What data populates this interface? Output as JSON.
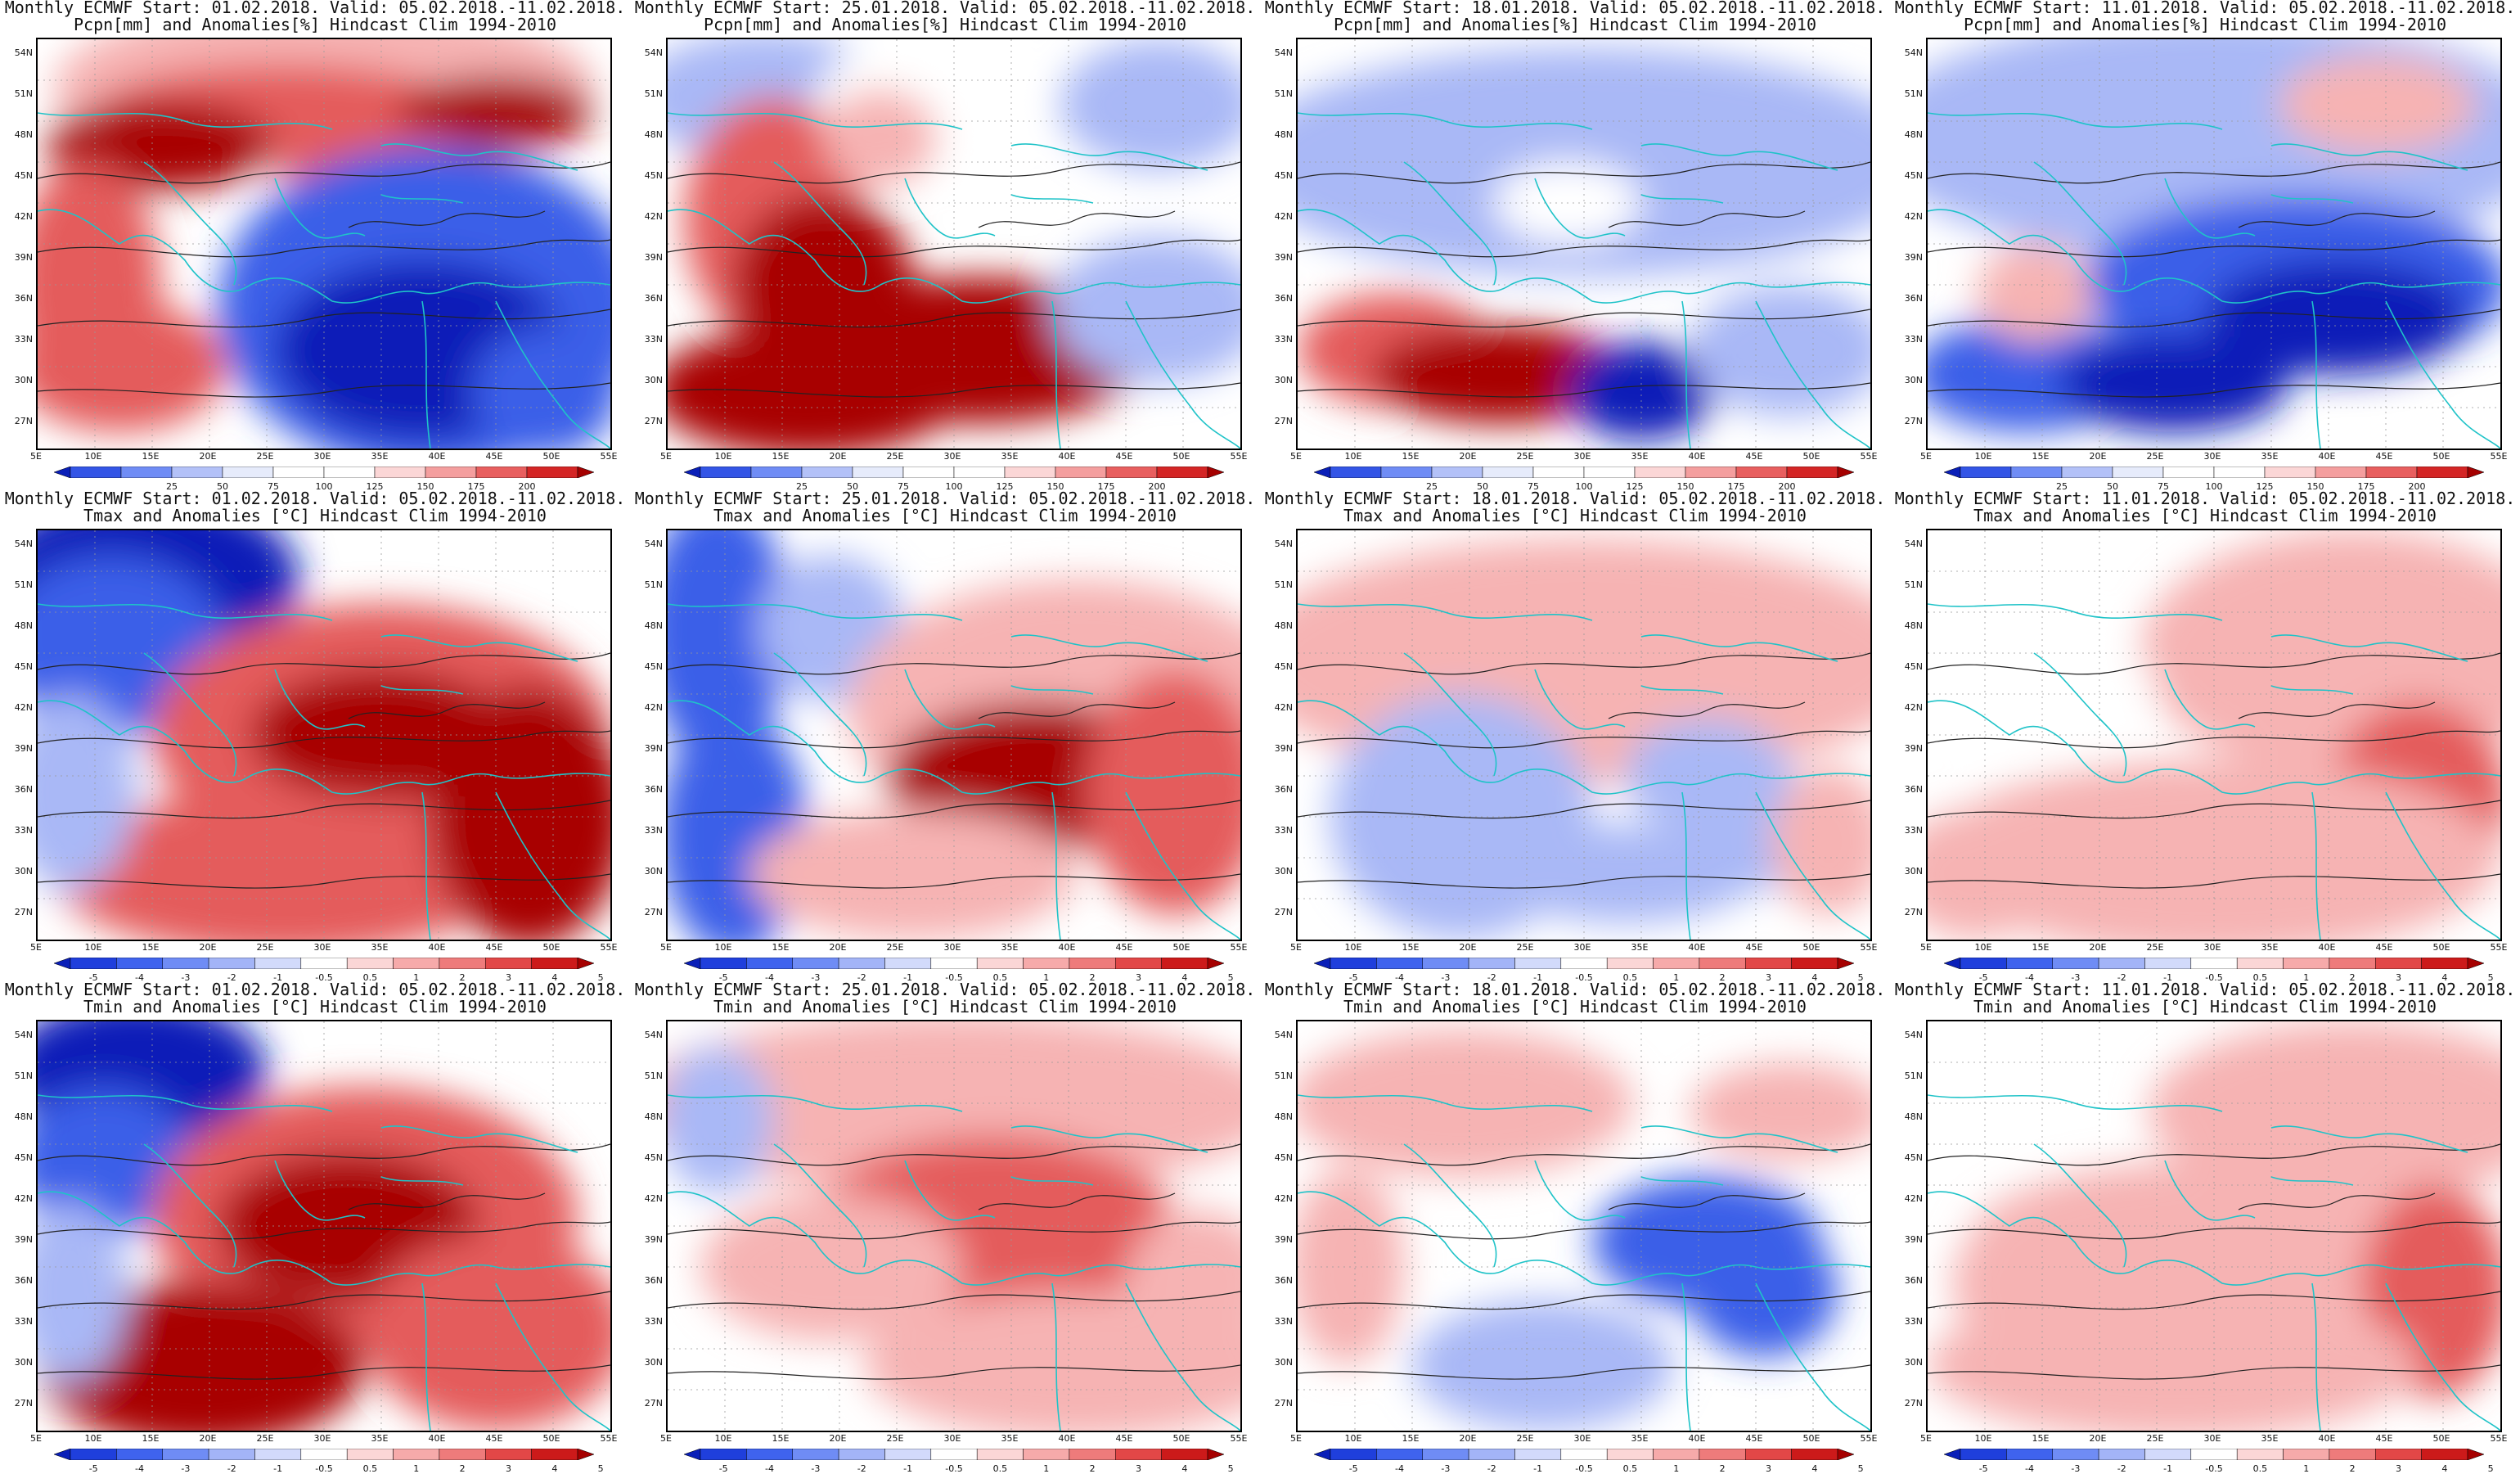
{
  "figure": {
    "lat_ticks": [
      "54N",
      "51N",
      "48N",
      "45N",
      "42N",
      "39N",
      "36N",
      "33N",
      "30N",
      "27N"
    ],
    "lon_ticks": [
      "5E",
      "10E",
      "15E",
      "20E",
      "25E",
      "30E",
      "35E",
      "40E",
      "45E",
      "50E",
      "55E"
    ],
    "colorbars": {
      "pcpn": {
        "labels": [
          "25",
          "50",
          "75",
          "100",
          "125",
          "150",
          "175",
          "200"
        ],
        "colors": [
          "#0a1fb8",
          "#3355e6",
          "#6f8cf5",
          "#b3c1f8",
          "#e6ebfb",
          "#ffffff",
          "#ffffff",
          "#fbd6d6",
          "#f49e9e",
          "#e85f5f",
          "#d42525",
          "#a50000"
        ]
      },
      "temp": {
        "labels": [
          "-5",
          "-4",
          "-3",
          "-2",
          "-1",
          "-0.5",
          "0.5",
          "1",
          "2",
          "3",
          "4",
          "5"
        ],
        "colors": [
          "#0a1fb8",
          "#1f3fdc",
          "#3f63ee",
          "#6f8cf5",
          "#a3b4f7",
          "#d2dafb",
          "#ffffff",
          "#fbd6d6",
          "#f6aaaa",
          "#ee7b7b",
          "#e24747",
          "#cc1a1a",
          "#a50000"
        ]
      }
    },
    "panels": [
      {
        "title1": "Monthly ECMWF Start: 01.02.2018. Valid: 05.02.2018.-11.02.2018.",
        "title2": "Pcpn[mm] and Anomalies[%] Hindcast Clim 1994-2010",
        "bar": "pcpn",
        "pattern": "p1"
      },
      {
        "title1": "Monthly ECMWF Start: 25.01.2018. Valid: 05.02.2018.-11.02.2018.",
        "title2": "Pcpn[mm] and Anomalies[%] Hindcast Clim 1994-2010",
        "bar": "pcpn",
        "pattern": "p2"
      },
      {
        "title1": "Monthly ECMWF Start: 18.01.2018. Valid: 05.02.2018.-11.02.2018.",
        "title2": "Pcpn[mm] and Anomalies[%] Hindcast Clim 1994-2010",
        "bar": "pcpn",
        "pattern": "p3"
      },
      {
        "title1": "Monthly ECMWF Start: 11.01.2018. Valid: 05.02.2018.-11.02.2018.",
        "title2": "Pcpn[mm] and Anomalies[%] Hindcast Clim 1994-2010",
        "bar": "pcpn",
        "pattern": "p4"
      },
      {
        "title1": "Monthly ECMWF Start: 01.02.2018. Valid: 05.02.2018.-11.02.2018.",
        "title2": "Tmax and Anomalies [°C] Hindcast Clim 1994-2010",
        "bar": "temp",
        "pattern": "t1"
      },
      {
        "title1": "Monthly ECMWF Start: 25.01.2018. Valid: 05.02.2018.-11.02.2018.",
        "title2": "Tmax and Anomalies [°C] Hindcast Clim 1994-2010",
        "bar": "temp",
        "pattern": "t2"
      },
      {
        "title1": "Monthly ECMWF Start: 18.01.2018. Valid: 05.02.2018.-11.02.2018.",
        "title2": "Tmax and Anomalies [°C] Hindcast Clim 1994-2010",
        "bar": "temp",
        "pattern": "t3"
      },
      {
        "title1": "Monthly ECMWF Start: 11.01.2018. Valid: 05.02.2018.-11.02.2018.",
        "title2": "Tmax and Anomalies [°C] Hindcast Clim 1994-2010",
        "bar": "temp",
        "pattern": "t4"
      },
      {
        "title1": "Monthly ECMWF Start: 01.02.2018. Valid: 05.02.2018.-11.02.2018.",
        "title2": "Tmin and Anomalies [°C] Hindcast Clim 1994-2010",
        "bar": "temp",
        "pattern": "n1"
      },
      {
        "title1": "Monthly ECMWF Start: 25.01.2018. Valid: 05.02.2018.-11.02.2018.",
        "title2": "Tmin and Anomalies [°C] Hindcast Clim 1994-2010",
        "bar": "temp",
        "pattern": "n2"
      },
      {
        "title1": "Monthly ECMWF Start: 18.01.2018. Valid: 05.02.2018.-11.02.2018.",
        "title2": "Tmin and Anomalies [°C] Hindcast Clim 1994-2010",
        "bar": "temp",
        "pattern": "n3"
      },
      {
        "title1": "Monthly ECMWF Start: 11.01.2018. Valid: 05.02.2018.-11.02.2018.",
        "title2": "Tmin and Anomalies [°C] Hindcast Clim 1994-2010",
        "bar": "temp",
        "pattern": "n4"
      }
    ]
  }
}
